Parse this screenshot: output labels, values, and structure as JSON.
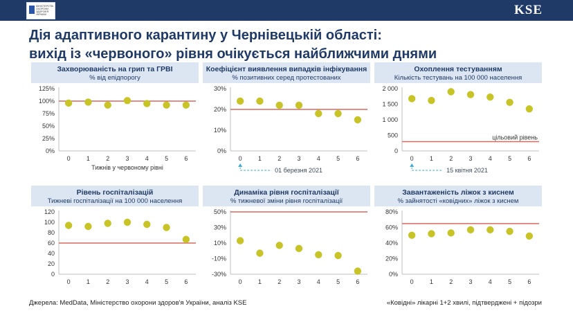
{
  "header": {
    "logo_text": "Міністерство охорони здоров'я України",
    "brand": "KSE"
  },
  "title": {
    "line1": "Дія адаптивного карантину у Чернівецькій області:",
    "line2": "вихід із «червоного» рівня очікується найближчими днями"
  },
  "colors": {
    "dot": "#c8c428",
    "threshold": "#d9685e",
    "header_band": "#dce6f2",
    "annotation": "#3aaed6",
    "navy": "#1f3a66"
  },
  "chart_data": [
    {
      "type": "scatter",
      "title": "Захворюваність на грип та ГРВІ",
      "subtitle": "% від епідпорогу",
      "x": [
        0,
        1,
        2,
        3,
        4,
        5,
        6
      ],
      "values": [
        96,
        98,
        92,
        101,
        95,
        92,
        92
      ],
      "yticks": [
        "0%",
        "25%",
        "50%",
        "75%",
        "100%",
        "125%"
      ],
      "ylim": [
        0,
        125
      ],
      "threshold": 100,
      "xlabel": "Тижнів у червоному рівні",
      "grid": false
    },
    {
      "type": "scatter",
      "title": "Коефіцієнт виявлення випадків інфікування",
      "subtitle": "% позитивних серед протестованих",
      "x": [
        0,
        1,
        2,
        3,
        4,
        5,
        6
      ],
      "values": [
        24,
        24,
        22,
        22,
        18,
        18,
        15
      ],
      "yticks": [
        "0%",
        "10%",
        "20%",
        "30%"
      ],
      "ylim": [
        0,
        30
      ],
      "threshold": 20,
      "annotation": "01 березня 2021",
      "grid": false
    },
    {
      "type": "scatter",
      "title": "Охоплення тестуванням",
      "subtitle": "Кількість тестувань на 100 000 населення",
      "x": [
        0,
        1,
        2,
        3,
        4,
        5,
        6
      ],
      "values": [
        1680,
        1620,
        1900,
        1810,
        1730,
        1560,
        1350
      ],
      "yticks": [
        "0",
        "500",
        "1 000",
        "1 500",
        "2 000"
      ],
      "ylim": [
        0,
        2000
      ],
      "threshold": 300,
      "threshold_label": "цільовий рівень",
      "annotation": "15 квітня 2021",
      "grid": false
    },
    {
      "type": "scatter",
      "title": "Рівень госпіталізацій",
      "subtitle": "Тижневі госпіталізації на 100 000 населення",
      "x": [
        0,
        1,
        2,
        3,
        4,
        5,
        6
      ],
      "values": [
        94,
        92,
        98,
        100,
        96,
        90,
        67
      ],
      "yticks": [
        "0",
        "20",
        "40",
        "60",
        "80",
        "100",
        "120"
      ],
      "ylim": [
        0,
        120
      ],
      "threshold": 60,
      "grid": false
    },
    {
      "type": "scatter",
      "title": "Динаміка рівня госпіталізації",
      "subtitle": "% тижневої зміни рівня госпіталізації",
      "x": [
        0,
        1,
        2,
        3,
        4,
        5,
        6
      ],
      "values": [
        13,
        -3,
        7,
        3,
        -5,
        -6,
        -26
      ],
      "yticks": [
        "-30%",
        "-10%",
        "10%",
        "30%",
        "50%"
      ],
      "ylim": [
        -30,
        50
      ],
      "threshold": 50,
      "grid": false
    },
    {
      "type": "scatter",
      "title": "Завантаженість ліжок з киснем",
      "subtitle": "% зайнятості «ковідних» ліжок з киснем",
      "x": [
        0,
        1,
        2,
        3,
        4,
        5,
        6
      ],
      "values": [
        50,
        52,
        53,
        57,
        57,
        55,
        49
      ],
      "yticks": [
        "0%",
        "20%",
        "40%",
        "60%",
        "80%"
      ],
      "ylim": [
        0,
        80
      ],
      "threshold": 65,
      "grid": false
    }
  ],
  "footer": {
    "source": "Джерела: MedData, Міністерство охорони здоров'я України, аналіз KSE",
    "note": "«Ковідні» лікарні 1+2 хвилі, підтверджені + підозри"
  }
}
